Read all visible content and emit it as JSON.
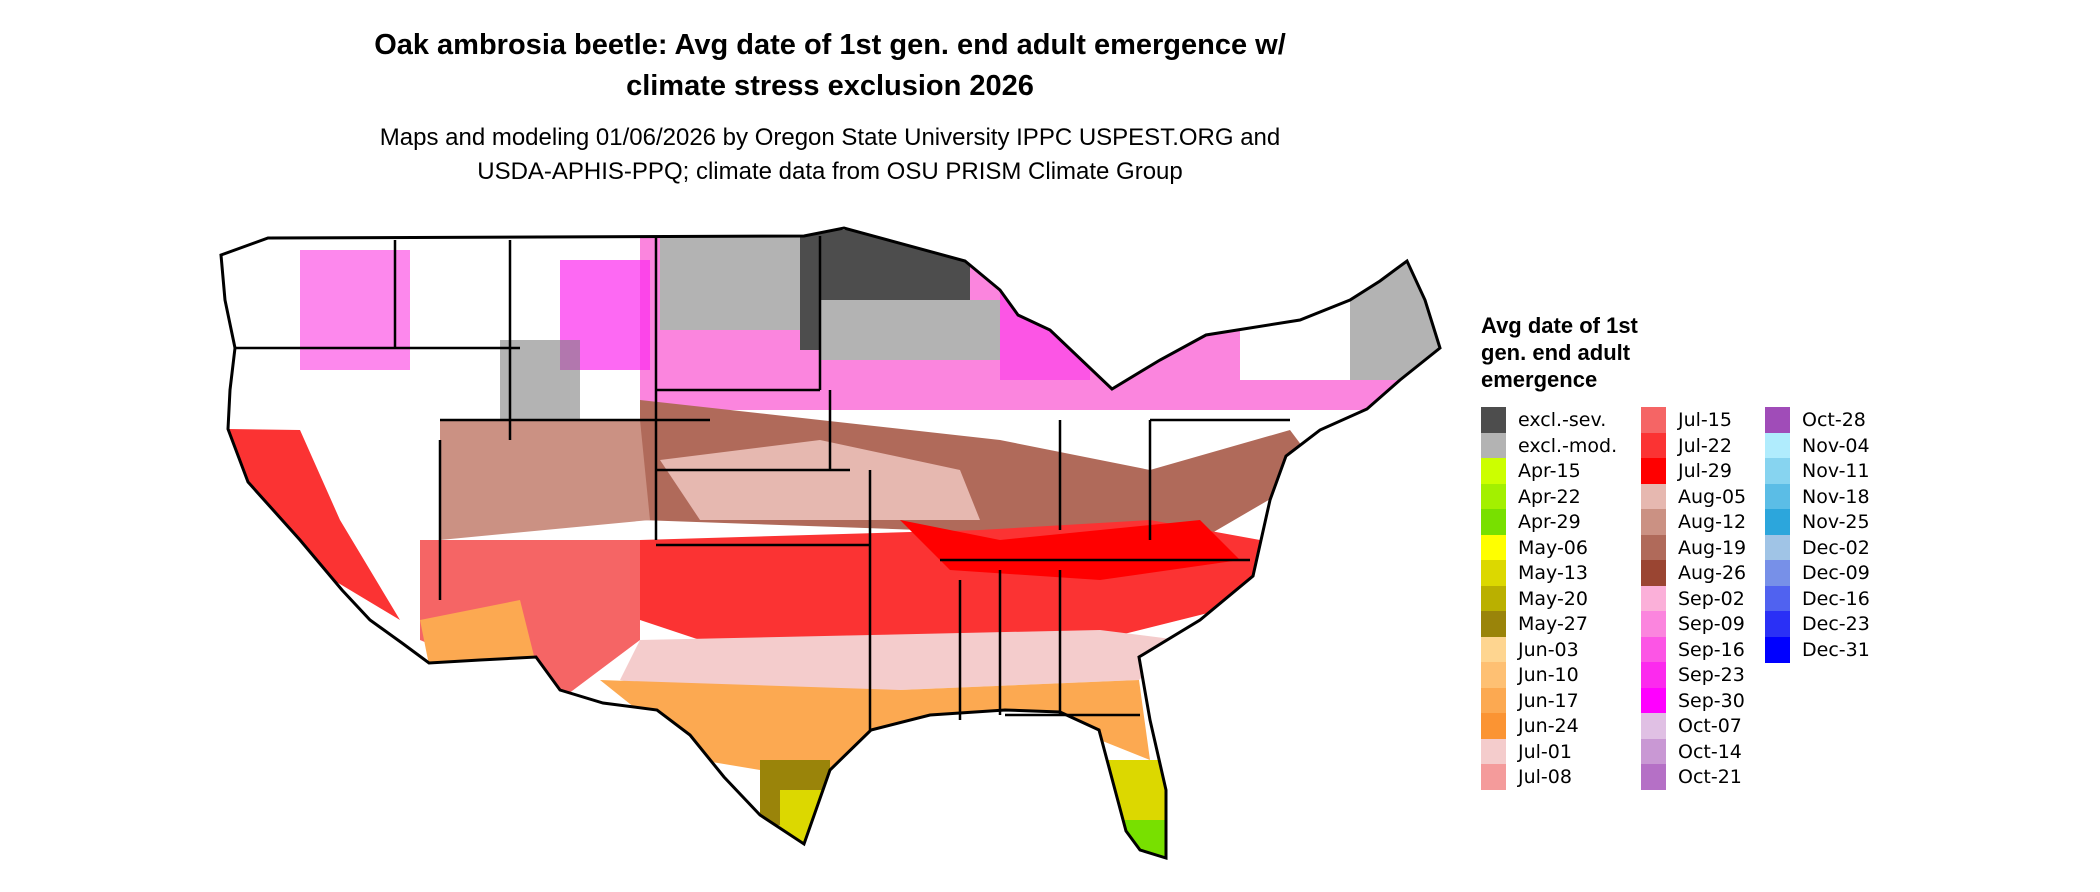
{
  "title": {
    "line1": "Oak ambrosia beetle: Avg date of 1st gen. end adult emergence w/",
    "line2": "climate stress exclusion 2026"
  },
  "subtitle": {
    "line1": "Maps and modeling 01/06/2026 by Oregon State University IPPC USPEST.ORG and",
    "line2": "USDA-APHIS-PPQ; climate data from OSU PRISM Climate Group"
  },
  "chart_data": {
    "type": "heatmap",
    "description_of_map": "Contiguous United States raster",
    "legend_title": "Avg date of 1st gen. end adult emergence",
    "legend_title_lines": [
      "Avg date of 1st",
      "gen. end adult",
      "emergence"
    ],
    "legend": [
      {
        "label": "excl.-sev.",
        "color": "#4d4d4d"
      },
      {
        "label": "excl.-mod.",
        "color": "#b3b3b3"
      },
      {
        "label": "Apr-15",
        "color": "#ccff00"
      },
      {
        "label": "Apr-22",
        "color": "#a3f000"
      },
      {
        "label": "Apr-29",
        "color": "#78e000"
      },
      {
        "label": "May-06",
        "color": "#ffff00"
      },
      {
        "label": "May-13",
        "color": "#dcd800"
      },
      {
        "label": "May-20",
        "color": "#bab000"
      },
      {
        "label": "May-27",
        "color": "#9a840a"
      },
      {
        "label": "Jun-03",
        "color": "#fed590"
      },
      {
        "label": "Jun-10",
        "color": "#fec073"
      },
      {
        "label": "Jun-17",
        "color": "#fca951"
      },
      {
        "label": "Jun-24",
        "color": "#fb9433"
      },
      {
        "label": "Jul-01",
        "color": "#f4cccc"
      },
      {
        "label": "Jul-08",
        "color": "#f49b9b"
      },
      {
        "label": "Jul-15",
        "color": "#f56565"
      },
      {
        "label": "Jul-22",
        "color": "#fb3333"
      },
      {
        "label": "Jul-29",
        "color": "#ff0000"
      },
      {
        "label": "Aug-05",
        "color": "#e6b8b0"
      },
      {
        "label": "Aug-12",
        "color": "#cb9183"
      },
      {
        "label": "Aug-19",
        "color": "#b06a5a"
      },
      {
        "label": "Aug-26",
        "color": "#9a4532"
      },
      {
        "label": "Sep-02",
        "color": "#fbb0d9"
      },
      {
        "label": "Sep-09",
        "color": "#fb85de"
      },
      {
        "label": "Sep-16",
        "color": "#fc55e5"
      },
      {
        "label": "Sep-23",
        "color": "#fc2aee"
      },
      {
        "label": "Sep-30",
        "color": "#ff00ff"
      },
      {
        "label": "Oct-07",
        "color": "#e0c0e4"
      },
      {
        "label": "Oct-14",
        "color": "#c998d4"
      },
      {
        "label": "Oct-21",
        "color": "#b570c6"
      },
      {
        "label": "Oct-28",
        "color": "#a04cb8"
      },
      {
        "label": "Nov-04",
        "color": "#b0ecfd"
      },
      {
        "label": "Nov-11",
        "color": "#87d4f0"
      },
      {
        "label": "Nov-18",
        "color": "#5bbde6"
      },
      {
        "label": "Nov-25",
        "color": "#2ca6dc"
      },
      {
        "label": "Dec-02",
        "color": "#a0c4e6"
      },
      {
        "label": "Dec-09",
        "color": "#7790e8"
      },
      {
        "label": "Dec-16",
        "color": "#5062f0"
      },
      {
        "label": "Dec-23",
        "color": "#2a30f6"
      },
      {
        "label": "Dec-31",
        "color": "#0000ff"
      }
    ]
  }
}
